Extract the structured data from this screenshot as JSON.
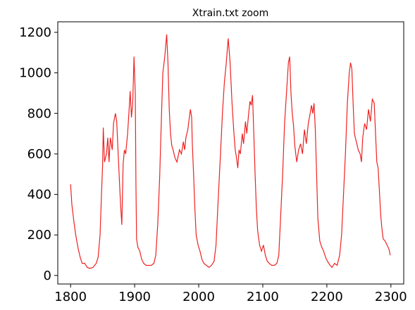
{
  "chart_data": {
    "type": "line",
    "title": "Xtrain.txt zoom",
    "x": [
      1800,
      1802,
      1805,
      1808,
      1812,
      1815,
      1818,
      1822,
      1826,
      1830,
      1835,
      1840,
      1843,
      1846,
      1848,
      1850,
      1851,
      1853,
      1856,
      1858,
      1860,
      1862,
      1865,
      1867,
      1870,
      1872,
      1875,
      1878,
      1880,
      1882,
      1884,
      1886,
      1889,
      1891,
      1893,
      1895,
      1897,
      1899,
      1901,
      1902,
      1903,
      1905,
      1908,
      1911,
      1914,
      1918,
      1922,
      1926,
      1930,
      1933,
      1936,
      1939,
      1942,
      1944,
      1947,
      1950,
      1952,
      1954,
      1956,
      1958,
      1960,
      1963,
      1966,
      1970,
      1973,
      1976,
      1978,
      1980,
      1983,
      1985,
      1987,
      1989,
      1990,
      1992,
      1994,
      1996,
      1999,
      2002,
      2005,
      2008,
      2012,
      2016,
      2020,
      2024,
      2027,
      2030,
      2034,
      2037,
      2040,
      2043,
      2046,
      2049,
      2052,
      2055,
      2057,
      2059,
      2061,
      2063,
      2065,
      2068,
      2070,
      2073,
      2075,
      2078,
      2080,
      2082,
      2084,
      2086,
      2088,
      2090,
      2092,
      2095,
      2098,
      2101,
      2104,
      2107,
      2110,
      2114,
      2118,
      2122,
      2125,
      2128,
      2131,
      2134,
      2137,
      2140,
      2142,
      2144,
      2146,
      2148,
      2150,
      2153,
      2156,
      2159,
      2162,
      2165,
      2168,
      2171,
      2174,
      2176,
      2178,
      2180,
      2182,
      2184,
      2186,
      2189,
      2192,
      2195,
      2198,
      2201,
      2205,
      2208,
      2212,
      2216,
      2220,
      2223,
      2226,
      2229,
      2232,
      2235,
      2237,
      2239,
      2241,
      2243,
      2246,
      2249,
      2252,
      2254,
      2256,
      2259,
      2262,
      2265,
      2268,
      2271,
      2274,
      2276,
      2278,
      2280,
      2282,
      2284,
      2286,
      2288,
      2291,
      2294,
      2297,
      2299
    ],
    "series": [
      {
        "color": "#ee2222",
        "values": [
          450,
          350,
          270,
          200,
          130,
          90,
          60,
          60,
          40,
          35,
          40,
          60,
          90,
          200,
          380,
          550,
          730,
          560,
          600,
          680,
          560,
          680,
          620,
          750,
          800,
          760,
          550,
          350,
          250,
          550,
          620,
          600,
          700,
          800,
          910,
          780,
          850,
          1080,
          900,
          450,
          180,
          140,
          120,
          80,
          60,
          50,
          50,
          50,
          60,
          100,
          250,
          480,
          800,
          1000,
          1080,
          1190,
          1050,
          820,
          700,
          640,
          620,
          580,
          560,
          620,
          600,
          660,
          620,
          680,
          720,
          770,
          820,
          780,
          650,
          500,
          330,
          200,
          150,
          120,
          80,
          60,
          50,
          40,
          50,
          70,
          150,
          350,
          600,
          800,
          950,
          1050,
          1170,
          1050,
          850,
          700,
          620,
          580,
          530,
          620,
          600,
          700,
          650,
          760,
          700,
          800,
          860,
          840,
          890,
          700,
          500,
          330,
          220,
          150,
          120,
          150,
          100,
          70,
          60,
          50,
          50,
          60,
          100,
          300,
          500,
          750,
          900,
          1050,
          1080,
          900,
          800,
          740,
          640,
          560,
          620,
          650,
          600,
          720,
          650,
          750,
          800,
          840,
          800,
          850,
          720,
          500,
          280,
          170,
          140,
          120,
          90,
          70,
          50,
          40,
          60,
          50,
          100,
          200,
          400,
          600,
          850,
          1000,
          1050,
          1020,
          850,
          700,
          660,
          620,
          600,
          560,
          680,
          750,
          720,
          820,
          760,
          870,
          850,
          700,
          560,
          530,
          420,
          300,
          230,
          180,
          170,
          150,
          130,
          100
        ]
      }
    ],
    "xlim": [
      1780,
      2320
    ],
    "xticks": [
      1800,
      1900,
      2000,
      2100,
      2200,
      2300
    ],
    "ylim": [
      -42,
      1252
    ],
    "yticks": [
      0,
      200,
      400,
      600,
      800,
      1000,
      1200
    ]
  }
}
